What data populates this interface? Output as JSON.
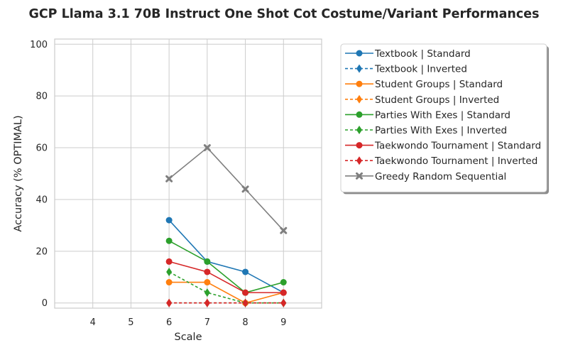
{
  "chart_data": {
    "type": "line",
    "title": "GCP Llama 3.1 70B Instruct One Shot Cot Costume/Variant Performances",
    "xlabel": "Scale",
    "ylabel": "Accuracy (% OPTIMAL)",
    "xlim": [
      3,
      10
    ],
    "ylim": [
      -2,
      102
    ],
    "xticks": [
      4,
      5,
      6,
      7,
      8,
      9
    ],
    "yticks": [
      0,
      20,
      40,
      60,
      80,
      100
    ],
    "grid": true,
    "legend_position": "outside-right",
    "x": [
      6,
      7,
      8,
      9
    ],
    "series": [
      {
        "name": "Textbook | Standard",
        "values": [
          32,
          16,
          12,
          4
        ],
        "color": "#1f77b4",
        "linestyle": "solid",
        "marker": "circle"
      },
      {
        "name": "Textbook | Inverted",
        "values": [
          0,
          0,
          0,
          0
        ],
        "color": "#1f77b4",
        "linestyle": "dashed",
        "marker": "diamond"
      },
      {
        "name": "Student Groups | Standard",
        "values": [
          8,
          8,
          0,
          4
        ],
        "color": "#ff7f0e",
        "linestyle": "solid",
        "marker": "circle"
      },
      {
        "name": "Student Groups | Inverted",
        "values": [
          0,
          0,
          0,
          0
        ],
        "color": "#ff7f0e",
        "linestyle": "dashed",
        "marker": "diamond"
      },
      {
        "name": "Parties With Exes | Standard",
        "values": [
          24,
          16,
          4,
          8
        ],
        "color": "#2ca02c",
        "linestyle": "solid",
        "marker": "circle"
      },
      {
        "name": "Parties With Exes | Inverted",
        "values": [
          12,
          4,
          0,
          0
        ],
        "color": "#2ca02c",
        "linestyle": "dashed",
        "marker": "diamond"
      },
      {
        "name": "Taekwondo Tournament | Standard",
        "values": [
          16,
          12,
          4,
          4
        ],
        "color": "#d62728",
        "linestyle": "solid",
        "marker": "circle"
      },
      {
        "name": "Taekwondo Tournament | Inverted",
        "values": [
          0,
          0,
          0,
          0
        ],
        "color": "#d62728",
        "linestyle": "dashed",
        "marker": "diamond"
      },
      {
        "name": "Greedy Random Sequential",
        "values": [
          48,
          60,
          44,
          28
        ],
        "color": "#7f7f7f",
        "linestyle": "solid",
        "marker": "x"
      }
    ]
  }
}
